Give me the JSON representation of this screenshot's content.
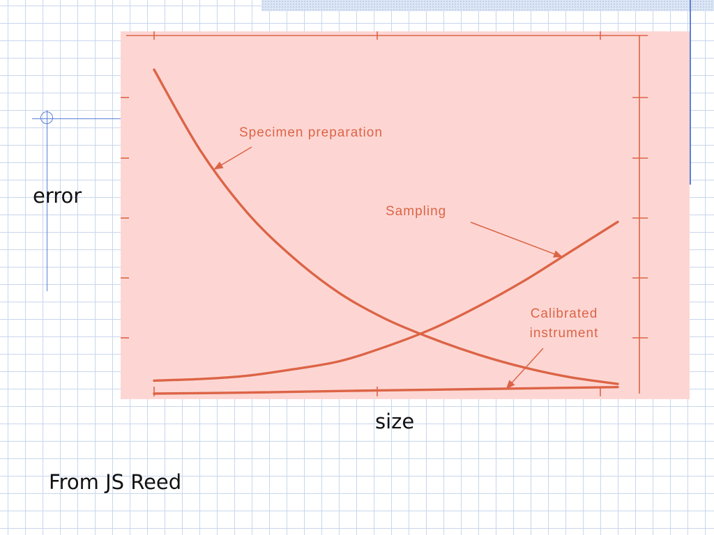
{
  "slide": {
    "ylabel": "error",
    "xlabel": "size",
    "source": "From JS Reed"
  },
  "colors": {
    "plot_background": "#fdd6d3",
    "curve": "#dc6446",
    "grid_line": "#c9d6ec",
    "accent_line": "#5a7fd6"
  },
  "chart_data": {
    "type": "line",
    "title": "",
    "xlabel": "size",
    "ylabel": "error",
    "xlim": [
      0,
      1
    ],
    "ylim": [
      0,
      1
    ],
    "grid": false,
    "legend": "none",
    "tick_labels_shown": false,
    "series": [
      {
        "name": "Specimen preparation",
        "x": [
          0,
          0.1,
          0.2,
          0.3,
          0.4,
          0.5,
          0.6,
          0.7,
          0.8,
          0.9,
          1.0
        ],
        "y": [
          1.0,
          0.75,
          0.56,
          0.42,
          0.31,
          0.23,
          0.17,
          0.12,
          0.08,
          0.05,
          0.03
        ]
      },
      {
        "name": "Sampling",
        "x": [
          0,
          0.1,
          0.2,
          0.3,
          0.4,
          0.5,
          0.6,
          0.7,
          0.8,
          0.9,
          1.0
        ],
        "y": [
          0.04,
          0.045,
          0.055,
          0.075,
          0.1,
          0.145,
          0.2,
          0.27,
          0.35,
          0.44,
          0.53
        ]
      },
      {
        "name": "Calibrated instrument",
        "x": [
          0,
          0.2,
          0.4,
          0.6,
          0.8,
          1.0
        ],
        "y": [
          0.0,
          0.003,
          0.008,
          0.012,
          0.016,
          0.02
        ]
      }
    ],
    "annotations": [
      {
        "lines": [
          "Specimen preparation"
        ],
        "points_to_series": "Specimen preparation",
        "at_x": 0.13
      },
      {
        "lines": [
          "Sampling"
        ],
        "points_to_series": "Sampling",
        "at_x": 0.88
      },
      {
        "lines": [
          "Calibrated",
          "instrument"
        ],
        "points_to_series": "Calibrated instrument",
        "at_x": 0.76
      }
    ]
  }
}
